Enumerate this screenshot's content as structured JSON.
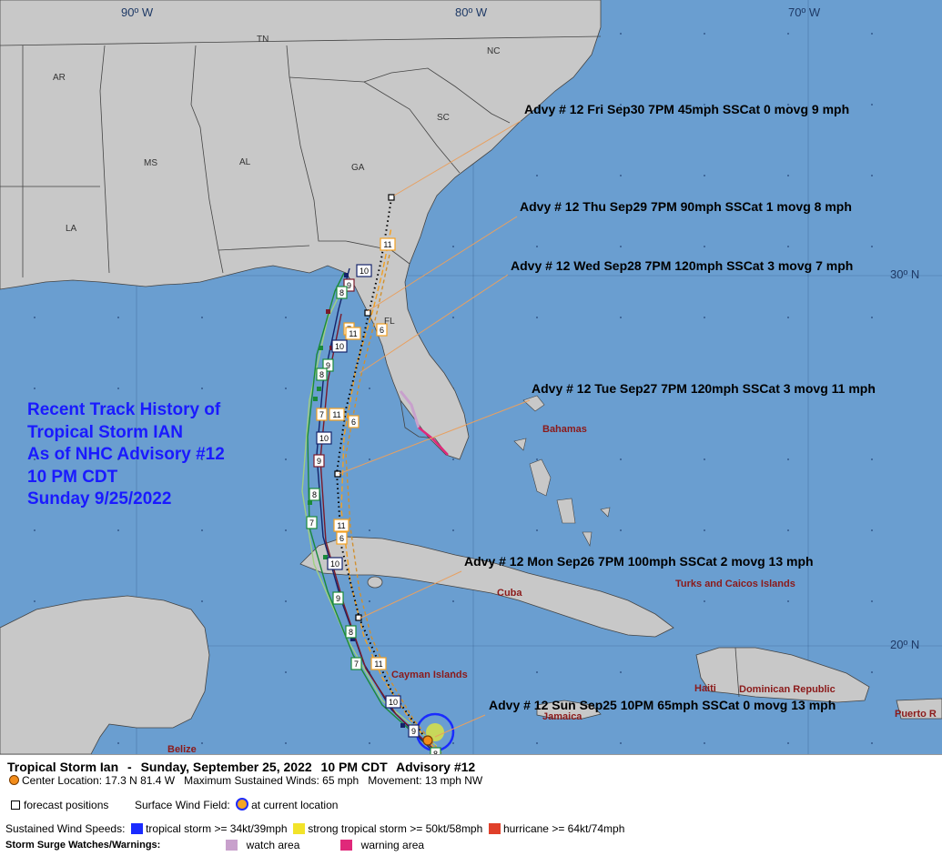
{
  "map": {
    "longitude_labels": [
      "90º W",
      "80º W",
      "70º W"
    ],
    "latitude_labels": [
      "30º N",
      "20º N"
    ],
    "state_labels": [
      "AR",
      "TN",
      "NC",
      "SC",
      "MS",
      "AL",
      "GA",
      "LA",
      "FL"
    ],
    "place_labels": [
      "Bahamas",
      "Cuba",
      "Turks and Caicos Islands",
      "Cayman Islands",
      "Haiti",
      "Dominican Republic",
      "Jamaica",
      "Belize",
      "Puerto R"
    ],
    "history_lines": [
      "Recent Track History of",
      "Tropical Storm IAN",
      "As of NHC Advisory #12",
      "10 PM CDT",
      "Sunday 9/25/2022"
    ],
    "forecast_labels": [
      "Advy # 12 Fri Sep30 7PM  45mph SSCat 0 movg 9 mph",
      "Advy # 12 Thu Sep29 7PM  90mph SSCat 1 movg 8 mph",
      "Advy # 12 Wed Sep28 7PM  120mph SSCat 3 movg 7 mph",
      "Advy # 12 Tue Sep27 7PM  120mph SSCat 3 movg 11 mph",
      "Advy # 12 Mon Sep26 7PM  100mph SSCat 2 movg 13 mph",
      "Advy # 12 Sun Sep25 10PM  65mph SSCat 0 movg 13 mph"
    ],
    "advisory_numbers": [
      "11",
      "10",
      "9",
      "8",
      "7",
      "6"
    ]
  },
  "legend": {
    "storm_name": "Tropical Storm Ian",
    "date": "Sunday, September 25, 2022",
    "time": "10 PM CDT",
    "advisory": "Advisory #12",
    "center_location": "Center Location: 17.3 N  81.4 W",
    "max_winds": "Maximum Sustained Winds: 65 mph",
    "movement": "Movement: 13 mph NW",
    "forecast_positions_label": "forecast positions",
    "surface_wind_label": "Surface Wind Field:",
    "current_location_label": "at current location",
    "sustained_label": "Sustained Wind Speeds:",
    "wind_categories": [
      {
        "label": "tropical storm >= 34kt/39mph",
        "color": "#1a2bff"
      },
      {
        "label": "strong tropical storm >= 50kt/58mph",
        "color": "#f2e32a"
      },
      {
        "label": "hurricane >= 64kt/74mph",
        "color": "#e0402a"
      }
    ],
    "surge_label": "Storm Surge Watches/Warnings:",
    "surge_categories": [
      {
        "label": "watch area",
        "color": "#c8a0cc"
      },
      {
        "label": "warning area",
        "color": "#e0287a"
      }
    ]
  },
  "colors": {
    "ocean": "#6a9ed0",
    "land": "#c8c8c8",
    "border": "#444444",
    "grid": "#355a8c"
  }
}
